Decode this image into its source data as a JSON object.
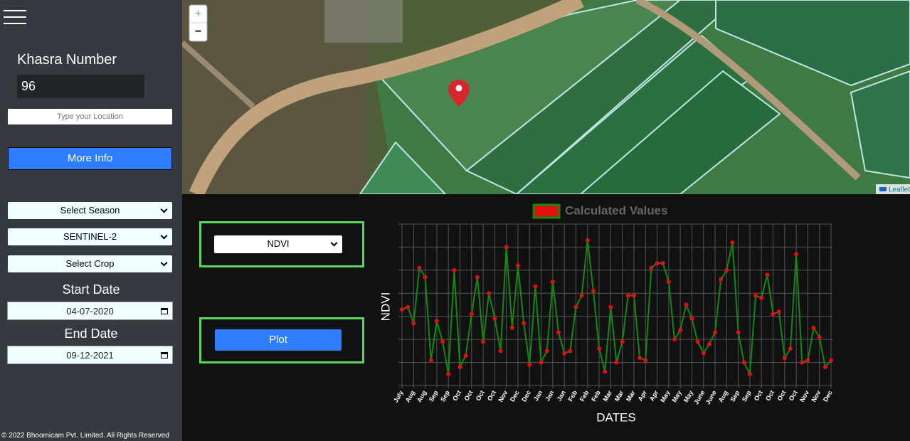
{
  "sidebar": {
    "title": "Khasra Number",
    "khasra": "96",
    "location_placeholder": "Type your Location",
    "button": "More Info",
    "selects": [
      "Select Season",
      "SENTINEL-2",
      "Select Crop"
    ],
    "start_label": "Start Date",
    "start_date": "04-07-2020",
    "end_label": "End Date",
    "end_date": "09-12-2021",
    "footer": "© 2022 Bhoomicam Pvt. Limited. All Rights Reserved"
  },
  "map": {
    "zoom_in": "+",
    "zoom_out": "−",
    "attribution": "Leaflet"
  },
  "controls": {
    "index": "NDVI",
    "plot": "Plot"
  },
  "chart_data": {
    "type": "line",
    "ylabel": "NDVI",
    "xlabel": "DATES",
    "categories": [
      "July",
      null,
      "Aug",
      null,
      "Aug",
      null,
      "Sep",
      null,
      "Sep",
      null,
      "Oct",
      null,
      "Oct",
      null,
      "Oct",
      null,
      "Oct",
      null,
      "Nov",
      null,
      "Dec",
      null,
      "Dec",
      null,
      "Jan",
      null,
      "Jan",
      null,
      "Jan",
      null,
      "Feb",
      null,
      "Feb",
      null,
      "Feb",
      null,
      "Mar",
      null,
      "Mar",
      null,
      "Mar",
      null,
      "Apr",
      null,
      "Apr",
      null,
      "May",
      null,
      "May",
      null,
      "May",
      null,
      "June",
      null,
      "June",
      null,
      "Aug",
      null,
      "Sep",
      null,
      "Sep",
      null,
      "Oct",
      null,
      "Oct",
      null,
      "Oct",
      null,
      "Oct",
      null,
      "Nov",
      null,
      "Nov",
      null,
      "Dec"
    ],
    "series": [
      {
        "name": "Calculated Values",
        "color": "#128a12",
        "marker_color": "#e01010",
        "values": [
          3.3,
          3.4,
          2.7,
          5.1,
          4.7,
          1.1,
          2.8,
          1.9,
          0.5,
          5.0,
          0.8,
          1.3,
          3.1,
          4.7,
          1.9,
          4.0,
          2.9,
          1.5,
          6.0,
          2.5,
          5.2,
          2.7,
          0.9,
          4.3,
          1.0,
          1.5,
          4.5,
          2.3,
          1.4,
          1.5,
          3.4,
          3.9,
          6.3,
          4.1,
          1.6,
          0.6,
          3.4,
          1.0,
          1.9,
          3.9,
          3.9,
          1.2,
          1.1,
          5.1,
          5.3,
          5.3,
          4.5,
          2.0,
          2.4,
          3.5,
          2.9,
          1.9,
          1.4,
          1.8,
          2.3,
          4.6,
          5.0,
          6.2,
          2.3,
          1.0,
          0.5,
          3.9,
          3.8,
          4.8,
          3.1,
          3.2,
          1.2,
          1.6,
          5.7,
          1.0,
          1.1,
          2.5,
          2.1,
          0.8,
          1.1
        ]
      }
    ],
    "ylim": [
      0,
      7
    ],
    "grid": true
  }
}
